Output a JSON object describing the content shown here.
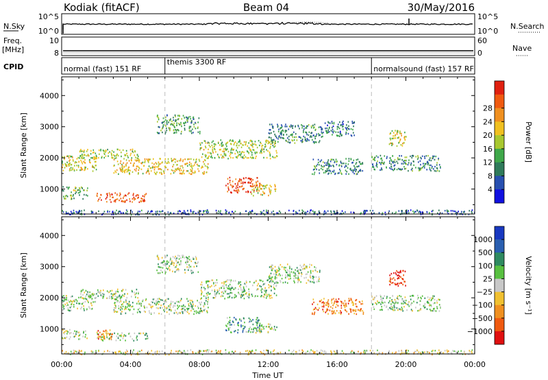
{
  "header": {
    "station": "Kodiak (fitACF)",
    "beam": "Beam 04",
    "date": "30/May/2016"
  },
  "side_labels": {
    "nsky": "N.Sky",
    "freq_line1": "Freq.",
    "freq_line2": "[MHz]",
    "cpid": "CPID",
    "nsearch": "N.Search",
    "nave": "Nave"
  },
  "strip_ticks": {
    "nsky_left": [
      "10^5",
      "10^0"
    ],
    "nsky_right": [
      "10^5",
      "10^0"
    ],
    "freq_left": [
      "10",
      "8"
    ],
    "nave_right": [
      "60",
      "0"
    ]
  },
  "cpid_modes": [
    {
      "label": "normal (fast) 151 RF",
      "start_hour": 0
    },
    {
      "label": "themis 3300 RF",
      "start_hour": 6
    },
    {
      "label": "normalsound (fast) 157 RF",
      "start_hour": 18
    }
  ],
  "chart_data": [
    {
      "type": "heatmap",
      "title": "Power",
      "ylabel": "Slant Range [km]",
      "xlabel": "Time UT",
      "x_ticks": [
        "00:00",
        "04:00",
        "08:00",
        "12:00",
        "16:00",
        "20:00",
        "00:00"
      ],
      "xlim_hours": [
        0,
        24
      ],
      "y_ticks": [
        1000,
        2000,
        3000,
        4000
      ],
      "ylim": [
        200,
        4600
      ],
      "colorbar": {
        "label": "Power [dB]",
        "ticks": [
          "4",
          "8",
          "12",
          "16",
          "20",
          "24",
          "28"
        ],
        "colors": [
          "#1010e0",
          "#2850b0",
          "#2f7a5a",
          "#3fa84a",
          "#a8c830",
          "#f0c020",
          "#f09020",
          "#f05a10",
          "#e02010"
        ]
      },
      "regions": [
        {
          "t0": 0.0,
          "t1": 2.0,
          "r0": 1600,
          "r1": 2100,
          "level": 0.55
        },
        {
          "t0": 1.0,
          "t1": 4.5,
          "r0": 2000,
          "r1": 2300,
          "level": 0.5
        },
        {
          "t0": 3.0,
          "t1": 8.5,
          "r0": 1500,
          "r1": 2000,
          "level": 0.6
        },
        {
          "t0": 8.0,
          "t1": 12.5,
          "r0": 2000,
          "r1": 2600,
          "level": 0.5
        },
        {
          "t0": 12.0,
          "t1": 15.0,
          "r0": 2500,
          "r1": 3100,
          "level": 0.3
        },
        {
          "t0": 15.0,
          "t1": 17.0,
          "r0": 2700,
          "r1": 3200,
          "level": 0.25
        },
        {
          "t0": 0.0,
          "t1": 1.5,
          "r0": 700,
          "r1": 1100,
          "level": 0.4
        },
        {
          "t0": 2.0,
          "t1": 5.0,
          "r0": 600,
          "r1": 900,
          "level": 0.85
        },
        {
          "t0": 9.5,
          "t1": 11.5,
          "r0": 900,
          "r1": 1400,
          "level": 0.9
        },
        {
          "t0": 11.0,
          "t1": 12.5,
          "r0": 800,
          "r1": 1200,
          "level": 0.6
        },
        {
          "t0": 5.5,
          "t1": 8.0,
          "r0": 2800,
          "r1": 3400,
          "level": 0.35
        },
        {
          "t0": 14.5,
          "t1": 17.5,
          "r0": 1500,
          "r1": 2000,
          "level": 0.3
        },
        {
          "t0": 18.0,
          "t1": 22.0,
          "r0": 1600,
          "r1": 2100,
          "level": 0.3
        },
        {
          "t0": 19.0,
          "t1": 20.0,
          "r0": 2400,
          "r1": 2900,
          "level": 0.55
        },
        {
          "t0": 0.0,
          "t1": 24.0,
          "r0": 200,
          "r1": 350,
          "level": 0.2
        }
      ]
    },
    {
      "type": "heatmap",
      "title": "Velocity",
      "ylabel": "Slant Range [km]",
      "xlabel": "Time UT",
      "x_ticks": [
        "00:00",
        "04:00",
        "08:00",
        "12:00",
        "16:00",
        "20:00",
        "00:00"
      ],
      "xlim_hours": [
        0,
        24
      ],
      "y_ticks": [
        1000,
        2000,
        3000,
        4000
      ],
      "ylim": [
        200,
        4600
      ],
      "colorbar": {
        "label": "Velocity [m s⁻¹]",
        "ticks": [
          "1000",
          "500",
          "100",
          "25",
          "−25",
          "−100",
          "−500",
          "−1000"
        ],
        "colors": [
          "#1838c0",
          "#2a5fb0",
          "#2f8a60",
          "#58c040",
          "#c8c8c8",
          "#f0c030",
          "#f09020",
          "#f05a10",
          "#e01010"
        ]
      },
      "regions": [
        {
          "t0": 0.0,
          "t1": 2.0,
          "r0": 1600,
          "r1": 2100,
          "level": 0.45
        },
        {
          "t0": 1.0,
          "t1": 4.5,
          "r0": 2000,
          "r1": 2300,
          "level": 0.45
        },
        {
          "t0": 3.0,
          "t1": 8.5,
          "r0": 1500,
          "r1": 2000,
          "level": 0.45
        },
        {
          "t0": 8.0,
          "t1": 12.5,
          "r0": 2000,
          "r1": 2600,
          "level": 0.45
        },
        {
          "t0": 12.0,
          "t1": 15.0,
          "r0": 2500,
          "r1": 3100,
          "level": 0.45
        },
        {
          "t0": 0.0,
          "t1": 1.5,
          "r0": 700,
          "r1": 1000,
          "level": 0.45
        },
        {
          "t0": 2.0,
          "t1": 5.0,
          "r0": 650,
          "r1": 900,
          "level": 0.45
        },
        {
          "t0": 2.0,
          "t1": 3.0,
          "r0": 700,
          "r1": 1000,
          "level": 0.75
        },
        {
          "t0": 9.5,
          "t1": 11.5,
          "r0": 900,
          "r1": 1400,
          "level": 0.3
        },
        {
          "t0": 11.0,
          "t1": 12.5,
          "r0": 900,
          "r1": 1200,
          "level": 0.45
        },
        {
          "t0": 5.5,
          "t1": 8.0,
          "r0": 2800,
          "r1": 3400,
          "level": 0.45
        },
        {
          "t0": 14.5,
          "t1": 17.5,
          "r0": 1500,
          "r1": 2000,
          "level": 0.75
        },
        {
          "t0": 18.0,
          "t1": 22.0,
          "r0": 1600,
          "r1": 2100,
          "level": 0.45
        },
        {
          "t0": 19.0,
          "t1": 20.0,
          "r0": 2400,
          "r1": 2900,
          "level": 0.9
        },
        {
          "t0": 0.0,
          "t1": 24.0,
          "r0": 200,
          "r1": 350,
          "level": 0.55
        }
      ]
    }
  ]
}
